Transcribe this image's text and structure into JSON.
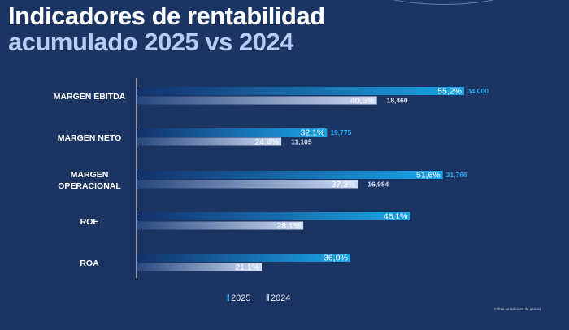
{
  "header": {
    "title_line1": "Indicadores de rentabilidad",
    "title_line2": "acumulado 2025 vs 2024"
  },
  "colors": {
    "background": "#1b3461",
    "bar_2025_start": "#13306a",
    "bar_2025_end": "#1aa6ea",
    "bar_2024_start": "#27467c",
    "bar_2024_end": "#cfdcf6",
    "annotation_2025": "#27a9ee",
    "annotation_2024": "#d7e0f2"
  },
  "chart_data": {
    "type": "bar",
    "orientation": "horizontal",
    "title": "Indicadores de rentabilidad acumulado 2025 vs 2024",
    "categories": [
      "MARGEN EBITDA",
      "MARGEN NETO",
      "MARGEN OPERACIONAL",
      "ROE",
      "ROA"
    ],
    "category_lines": [
      [
        "MARGEN EBITDA"
      ],
      [
        "MARGEN NETO"
      ],
      [
        "MARGEN",
        "OPERACIONAL"
      ],
      [
        "ROE"
      ],
      [
        "ROA"
      ]
    ],
    "series": [
      {
        "name": "2025",
        "values": [
          55.2,
          32.1,
          51.6,
          46.1,
          36.0
        ],
        "labels": [
          "55,2%",
          "32,1%",
          "51,6%",
          "46,1%",
          "36,0%"
        ],
        "annotations": [
          "34,000",
          "19,775",
          "31,766",
          "",
          ""
        ]
      },
      {
        "name": "2024",
        "values": [
          40.5,
          24.4,
          37.3,
          28.1,
          21.1
        ],
        "labels": [
          "40,5%",
          "24,4%",
          "37,3%",
          "28,1%",
          "21,1%"
        ],
        "annotations": [
          "18,460",
          "11,105",
          "16,984",
          "",
          ""
        ]
      }
    ],
    "xlim": [
      0,
      60
    ],
    "grid": false,
    "legend_position": "bottom-center",
    "footnote": "(cifras en millones de pesos)"
  }
}
